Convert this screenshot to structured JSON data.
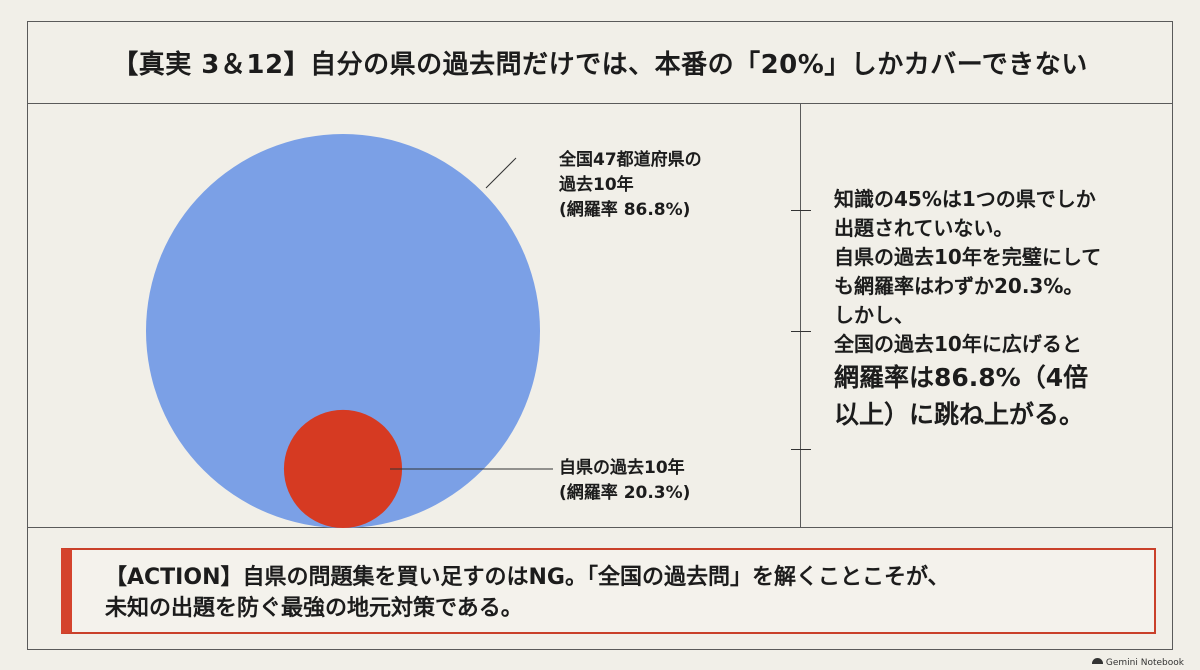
{
  "title": "【真実 3＆12】自分の県の過去問だけでは、本番の「20%」しかカバーできない",
  "diagram": {
    "large_circle": {
      "label_lines": [
        "全国47都道府県の",
        "過去10年",
        "(網羅率 86.8%)"
      ],
      "coverage_percent": 86.8,
      "color": "#7ba0e6"
    },
    "small_circle": {
      "label_lines": [
        "自県の過去10年",
        "(網羅率 20.3%)"
      ],
      "coverage_percent": 20.3,
      "color": "#d63a22"
    }
  },
  "notes": [
    "知識の45%は1つの県でしか",
    "出題されていない。",
    "自県の過去10年を完璧にして",
    "も網羅率はわずか20.3%。",
    "しかし、",
    "全国の過去10年に広げると",
    "網羅率は86.8%（4倍",
    "以上）に跳ね上がる。"
  ],
  "action": {
    "lines": [
      "【ACTION】自県の問題集を買い足すのはNG。「全国の過去問」を解くことこそが、",
      "未知の出題を防ぐ最強の地元対策である。"
    ],
    "accent_color": "#d4442d"
  },
  "footer": {
    "brand": "Gemini Notebook"
  }
}
